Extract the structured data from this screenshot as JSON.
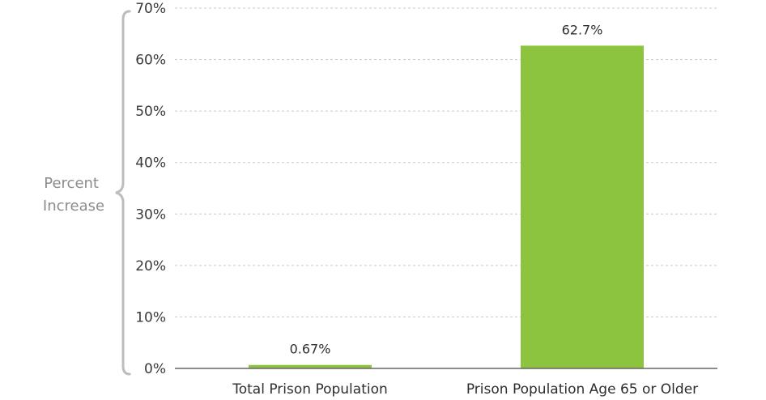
{
  "chart_data": {
    "type": "bar",
    "title": "",
    "xlabel": "",
    "ylabel": "Percent Increase",
    "ylabel_lines": [
      "Percent",
      "Increase"
    ],
    "categories": [
      "Total Prison Population",
      "Prison Population Age 65 or Older"
    ],
    "values": [
      0.67,
      62.7
    ],
    "data_labels": [
      "0.67%",
      "62.7%"
    ],
    "ylim": [
      0,
      70
    ],
    "yticks": [
      0,
      10,
      20,
      30,
      40,
      50,
      60,
      70
    ],
    "ytick_labels": [
      "0%",
      "10%",
      "20%",
      "30%",
      "40%",
      "50%",
      "60%",
      "70%"
    ],
    "grid": true,
    "legend": "none",
    "colors": {
      "bar": "#8cc43f",
      "grid": "#c8c8c8",
      "axis": "#666666",
      "brace": "#bdbdbd",
      "axis_title": "#8c8c8c"
    }
  }
}
